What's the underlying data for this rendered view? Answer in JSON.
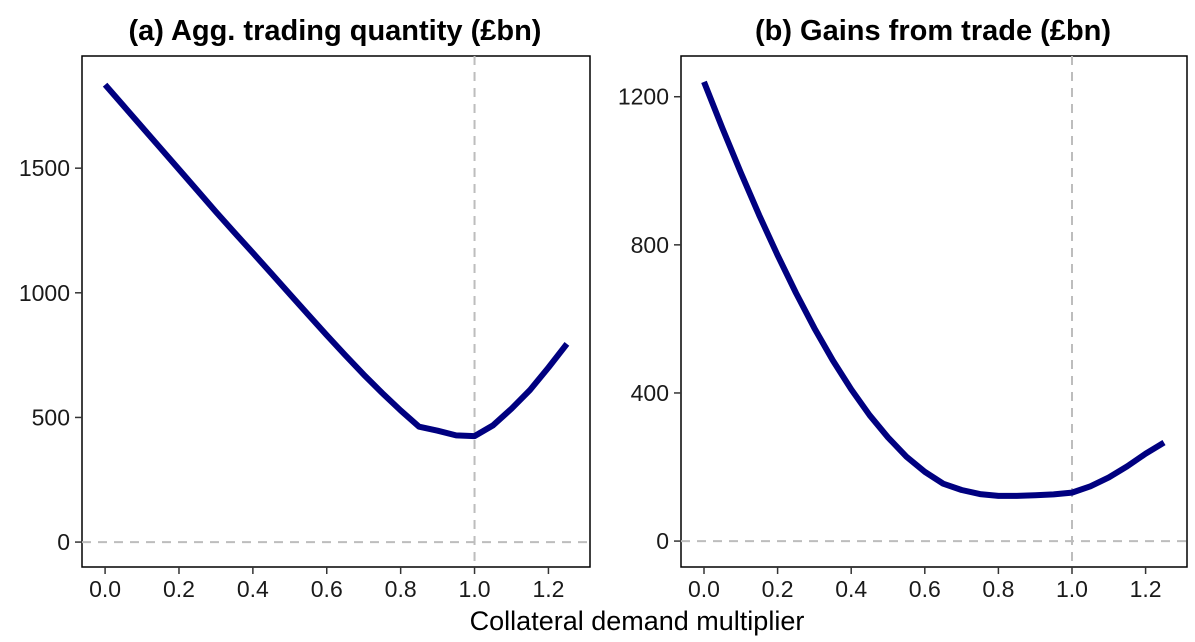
{
  "figure": {
    "xlabel": "Collateral demand multiplier"
  },
  "chart_data": [
    {
      "type": "line",
      "title": "(a) Agg. trading quantity (£bn)",
      "xlabel": "Collateral demand multiplier",
      "ylabel": "",
      "xlim": [
        -0.0625,
        1.3125
      ],
      "ylim": [
        -100,
        1950
      ],
      "xticks": [
        "0.0",
        "0.2",
        "0.4",
        "0.6",
        "0.8",
        "1.0",
        "1.2"
      ],
      "xtick_values": [
        0,
        0.2,
        0.4,
        0.6,
        0.8,
        1.0,
        1.2
      ],
      "yticks": [
        "0",
        "500",
        "1000",
        "1500"
      ],
      "ytick_values": [
        0,
        500,
        1000,
        1500
      ],
      "grid": false,
      "reference_lines": {
        "vertical": 1.0,
        "horizontal": 0
      },
      "line_color": "#000080",
      "reference_color": "#bdbdbd",
      "series": [
        {
          "x": [
            0,
            0.05,
            0.1,
            0.15,
            0.2,
            0.25,
            0.3,
            0.35,
            0.4,
            0.45,
            0.5,
            0.55,
            0.6,
            0.65,
            0.7,
            0.75,
            0.8,
            0.85,
            0.9,
            0.95,
            1.0,
            1.05,
            1.1,
            1.15,
            1.2,
            1.25
          ],
          "values": [
            1835,
            1750,
            1665,
            1580,
            1495,
            1410,
            1325,
            1242,
            1160,
            1078,
            995,
            912,
            830,
            750,
            672,
            598,
            528,
            463,
            447,
            428,
            425,
            468,
            535,
            610,
            700,
            795
          ]
        }
      ]
    },
    {
      "type": "line",
      "title": "(b) Gains from trade (£bn)",
      "xlabel": "Collateral demand multiplier",
      "ylabel": "",
      "xlim": [
        -0.0625,
        1.3125
      ],
      "ylim": [
        -70,
        1310
      ],
      "xticks": [
        "0.0",
        "0.2",
        "0.4",
        "0.6",
        "0.8",
        "1.0",
        "1.2"
      ],
      "xtick_values": [
        0,
        0.2,
        0.4,
        0.6,
        0.8,
        1.0,
        1.2
      ],
      "yticks": [
        "0",
        "400",
        "800",
        "1200"
      ],
      "ytick_values": [
        0,
        400,
        800,
        1200
      ],
      "grid": false,
      "reference_lines": {
        "vertical": 1.0,
        "horizontal": 0
      },
      "line_color": "#000080",
      "reference_color": "#bdbdbd",
      "series": [
        {
          "x": [
            0,
            0.05,
            0.1,
            0.15,
            0.2,
            0.25,
            0.3,
            0.35,
            0.4,
            0.45,
            0.5,
            0.55,
            0.6,
            0.65,
            0.7,
            0.75,
            0.8,
            0.85,
            0.9,
            0.95,
            1.0,
            1.05,
            1.1,
            1.15,
            1.2,
            1.25
          ],
          "values": [
            1240,
            1115,
            995,
            880,
            772,
            670,
            575,
            488,
            410,
            340,
            280,
            228,
            187,
            155,
            138,
            127,
            122,
            122,
            124,
            126,
            131,
            148,
            172,
            202,
            236,
            266
          ]
        }
      ]
    }
  ]
}
